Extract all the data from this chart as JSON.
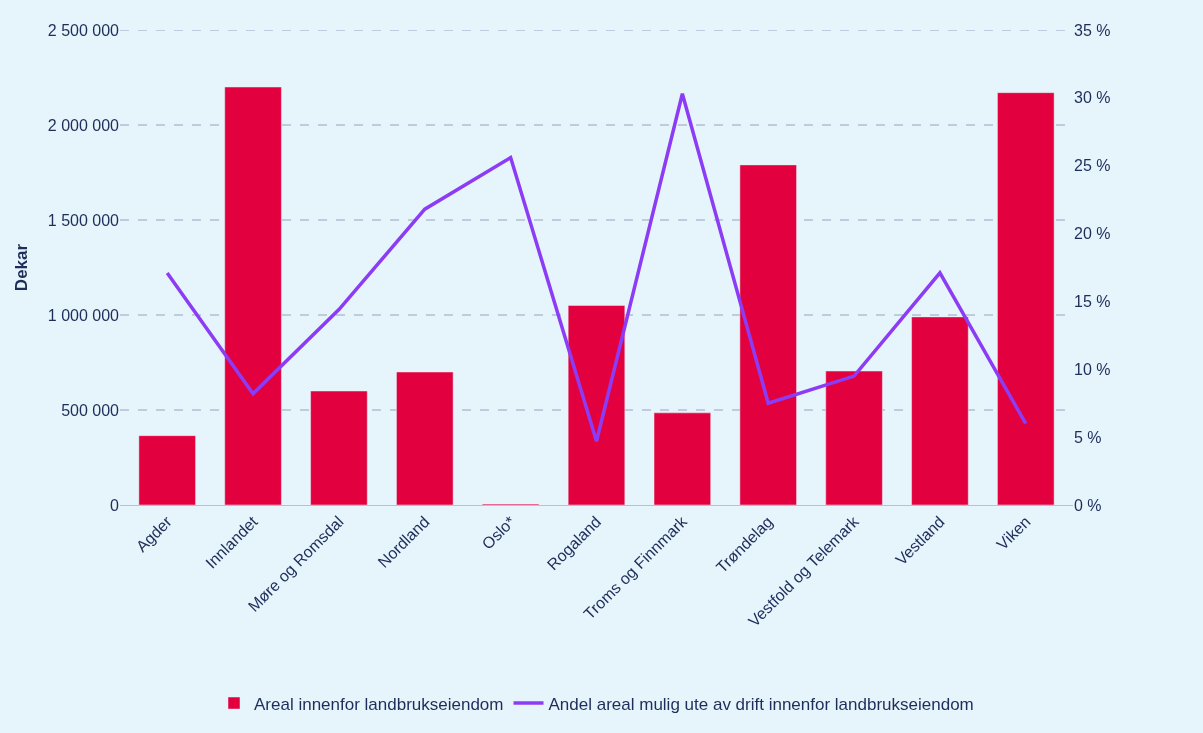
{
  "chart_data": {
    "type": "bar",
    "ylabel": "Dekar",
    "categories": [
      "Agder",
      "Innlandet",
      "Møre og Romsdal",
      "Nordland",
      "Oslo*",
      "Rogaland",
      "Troms og Finnmark",
      "Trøndelag",
      "Vestfold og Telemark",
      "Vestland",
      "Viken"
    ],
    "series": [
      {
        "name": "Areal innenfor landbrukseiendom",
        "color": "#e2003f",
        "values": [
          365000,
          2200000,
          600000,
          700000,
          5000,
          1050000,
          485000,
          1790000,
          705000,
          990000,
          2170000
        ]
      },
      {
        "name": "Andel areal mulig ute av drift innenfor landbrukseiendom",
        "type": "line",
        "axis": "y2",
        "color": "#8c3cf5",
        "values": [
          17.1,
          8.2,
          14.4,
          21.8,
          25.6,
          4.7,
          30.3,
          7.5,
          9.5,
          17.1,
          6.0
        ]
      }
    ],
    "ylim": [
      0,
      2500000
    ],
    "yticks": [
      {
        "value": 0,
        "label": "0"
      },
      {
        "value": 500000,
        "label": "500 000"
      },
      {
        "value": 1000000,
        "label": "1 000 000"
      },
      {
        "value": 1500000,
        "label": "1 500 000"
      },
      {
        "value": 2000000,
        "label": "2 000 000"
      },
      {
        "value": 2500000,
        "label": "2 500 000"
      }
    ],
    "y2lim": [
      0,
      35
    ],
    "y2ticks": [
      {
        "value": 0,
        "label": "0 %"
      },
      {
        "value": 5,
        "label": "5 %"
      },
      {
        "value": 10,
        "label": "10 %"
      },
      {
        "value": 15,
        "label": "15 %"
      },
      {
        "value": 20,
        "label": "20 %"
      },
      {
        "value": 25,
        "label": "25 %"
      },
      {
        "value": 30,
        "label": "30 %"
      },
      {
        "value": 35,
        "label": "35 %"
      }
    ],
    "grid": "y",
    "legend": "bottom",
    "marker": "none",
    "line_style": "solid"
  }
}
